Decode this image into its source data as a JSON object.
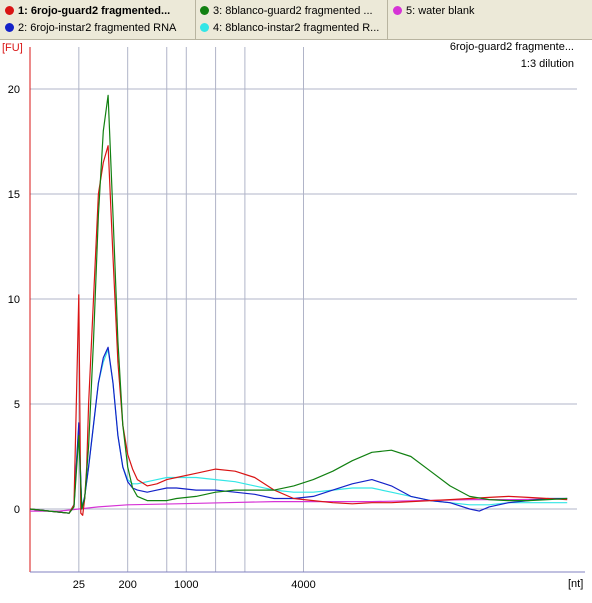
{
  "legend": {
    "items": [
      {
        "label": "1: 6rojo-guard2 fragmented...",
        "color": "#d91414"
      },
      {
        "label": "2: 6rojo-instar2 fragmented RNA",
        "color": "#1422c8"
      },
      {
        "label": "3: 8blanco-guard2 fragmented ...",
        "color": "#118011"
      },
      {
        "label": "4: 8blanco-instar2 fragmented R...",
        "color": "#33e6e6"
      },
      {
        "label": "5: water blank",
        "color": "#d633d6"
      }
    ]
  },
  "chart_data": {
    "type": "line",
    "title": "6rojo-guard2 fragmente...",
    "subtitle": "1:3 dilution",
    "ylabel": "[FU]",
    "xlabel": "[nt]",
    "ylim": [
      -3,
      22
    ],
    "yticks": [
      0,
      5,
      10,
      15,
      20
    ],
    "xlim": [
      15,
      71
    ],
    "xticks": [
      {
        "x": 20,
        "label": "25"
      },
      {
        "x": 25,
        "label": "200"
      },
      {
        "x": 31,
        "label": "1000"
      },
      {
        "x": 43,
        "label": "4000"
      }
    ],
    "xgrid_minor": [
      20,
      25,
      29,
      31,
      34,
      37,
      43
    ],
    "grid": true,
    "colors": {
      "axis_left": "#d91414",
      "axis_bottom": "#8080c0",
      "grid": "#b0b4c8"
    },
    "series": [
      {
        "name": "1: 6rojo-guard2 fragmented...",
        "color": "#d91414",
        "x": [
          15,
          17,
          19,
          19.5,
          20,
          20.2,
          20.4,
          20.6,
          20.8,
          21,
          21.5,
          22,
          22.5,
          23,
          23.5,
          24,
          24.5,
          25,
          25.5,
          26,
          27,
          28,
          29,
          30,
          32,
          34,
          36,
          38,
          40,
          42,
          44,
          46,
          48,
          50,
          52,
          54,
          56,
          58,
          60,
          62,
          64,
          66,
          68,
          70
        ],
        "y": [
          0,
          -0.1,
          -0.2,
          0.2,
          10.2,
          -0.2,
          -0.3,
          0.5,
          2,
          5,
          10,
          15,
          16.5,
          17.3,
          12,
          7,
          4,
          2.6,
          1.9,
          1.4,
          1.1,
          1.2,
          1.4,
          1.5,
          1.7,
          1.9,
          1.8,
          1.5,
          0.9,
          0.5,
          0.4,
          0.3,
          0.25,
          0.3,
          0.3,
          0.35,
          0.4,
          0.45,
          0.5,
          0.55,
          0.6,
          0.55,
          0.5,
          0.45
        ]
      },
      {
        "name": "2: 6rojo-instar2 fragmented RNA",
        "color": "#1422c8",
        "x": [
          15,
          17,
          19,
          19.5,
          20,
          20.3,
          20.6,
          21,
          21.5,
          22,
          22.5,
          23,
          23.5,
          24,
          24.5,
          25,
          25.5,
          26,
          27,
          28,
          29,
          30,
          32,
          34,
          36,
          38,
          40,
          42,
          44,
          46,
          48,
          50,
          52,
          54,
          56,
          58,
          60,
          61,
          62,
          64,
          66,
          68,
          70
        ],
        "y": [
          0,
          -0.1,
          -0.2,
          0.2,
          4.1,
          0,
          0.6,
          2,
          4,
          6,
          7.2,
          7.7,
          6,
          3.5,
          2,
          1.3,
          1,
          0.9,
          0.8,
          0.9,
          1,
          1,
          0.9,
          0.9,
          0.8,
          0.7,
          0.5,
          0.5,
          0.6,
          0.9,
          1.2,
          1.4,
          1.1,
          0.6,
          0.4,
          0.3,
          0,
          -0.1,
          0.1,
          0.3,
          0.4,
          0.5,
          0.5
        ]
      },
      {
        "name": "3: 8blanco-guard2 fragmented ...",
        "color": "#118011",
        "x": [
          15,
          17,
          19,
          19.5,
          20,
          20.3,
          20.6,
          21,
          21.5,
          22,
          22.5,
          23,
          23.5,
          24,
          24.5,
          25,
          25.5,
          26,
          27,
          28,
          29,
          30,
          32,
          34,
          36,
          38,
          40,
          42,
          44,
          46,
          48,
          50,
          52,
          54,
          56,
          58,
          60,
          62,
          64,
          66,
          68,
          70
        ],
        "y": [
          0,
          -0.1,
          -0.2,
          0.1,
          3.5,
          0,
          0.5,
          3,
          8,
          14,
          18,
          19.7,
          14,
          8,
          4,
          2,
          1,
          0.6,
          0.4,
          0.4,
          0.4,
          0.5,
          0.6,
          0.8,
          0.9,
          0.9,
          0.9,
          1.1,
          1.4,
          1.8,
          2.3,
          2.7,
          2.8,
          2.5,
          1.8,
          1.1,
          0.6,
          0.45,
          0.4,
          0.4,
          0.45,
          0.5
        ]
      },
      {
        "name": "4: 8blanco-instar2 fragmented R...",
        "color": "#33e6e6",
        "x": [
          15,
          17,
          19,
          19.5,
          20,
          20.3,
          20.6,
          21,
          21.5,
          22,
          22.5,
          23,
          23.5,
          24,
          24.5,
          25,
          25.5,
          26,
          27,
          28,
          29,
          30,
          32,
          34,
          36,
          38,
          40,
          42,
          44,
          46,
          48,
          50,
          52,
          54,
          56,
          58,
          60,
          62,
          64,
          66,
          68,
          70
        ],
        "y": [
          0,
          -0.1,
          -0.2,
          0.2,
          3.9,
          0,
          0.6,
          2,
          4,
          6,
          7,
          7.6,
          6,
          3.5,
          2,
          1.4,
          1.2,
          1.2,
          1.3,
          1.4,
          1.5,
          1.5,
          1.5,
          1.4,
          1.3,
          1.1,
          0.9,
          0.8,
          0.8,
          0.9,
          1,
          1,
          0.8,
          0.6,
          0.4,
          0.3,
          0.2,
          0.2,
          0.3,
          0.3,
          0.3,
          0.3
        ]
      },
      {
        "name": "5: water blank",
        "color": "#d633d6",
        "x": [
          15,
          18,
          20,
          22,
          25,
          30,
          35,
          40,
          45,
          50,
          55,
          60,
          65,
          70
        ],
        "y": [
          -0.1,
          -0.1,
          0,
          0.1,
          0.2,
          0.25,
          0.3,
          0.35,
          0.35,
          0.35,
          0.4,
          0.45,
          0.45,
          0.5
        ]
      }
    ]
  }
}
